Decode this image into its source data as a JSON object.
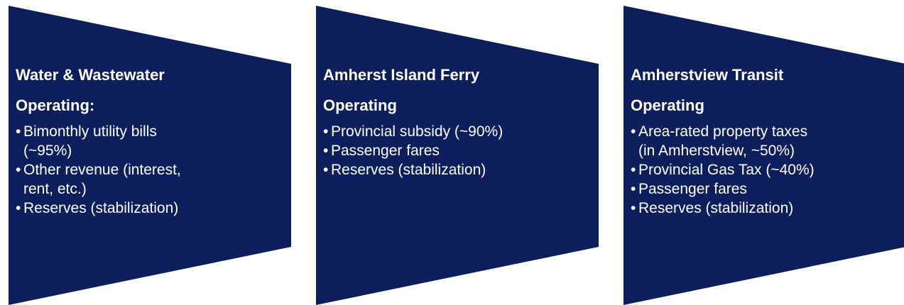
{
  "panels": [
    {
      "title_lines": [
        "Water & Wastewater",
        "Operating:"
      ],
      "bullets": [
        [
          "Bimonthly utility bills",
          "(~95%)"
        ],
        [
          "Other revenue (interest,",
          "rent, etc.)"
        ],
        [
          "Reserves (stabilization)"
        ]
      ]
    },
    {
      "title_lines": [
        "Amherst Island Ferry",
        "Operating"
      ],
      "bullets": [
        [
          "Provincial subsidy (~90%)"
        ],
        [
          "Passenger fares"
        ],
        [
          "Reserves (stabilization)"
        ]
      ]
    },
    {
      "title_lines": [
        "Amherstview Transit",
        "Operating"
      ],
      "bullets": [
        [
          "Area-rated property taxes",
          "(in Amherstview, ~50%)"
        ],
        [
          "Provincial Gas Tax (~40%)"
        ],
        [
          "Passenger fares"
        ],
        [
          "Reserves (stabilization)"
        ]
      ]
    }
  ]
}
